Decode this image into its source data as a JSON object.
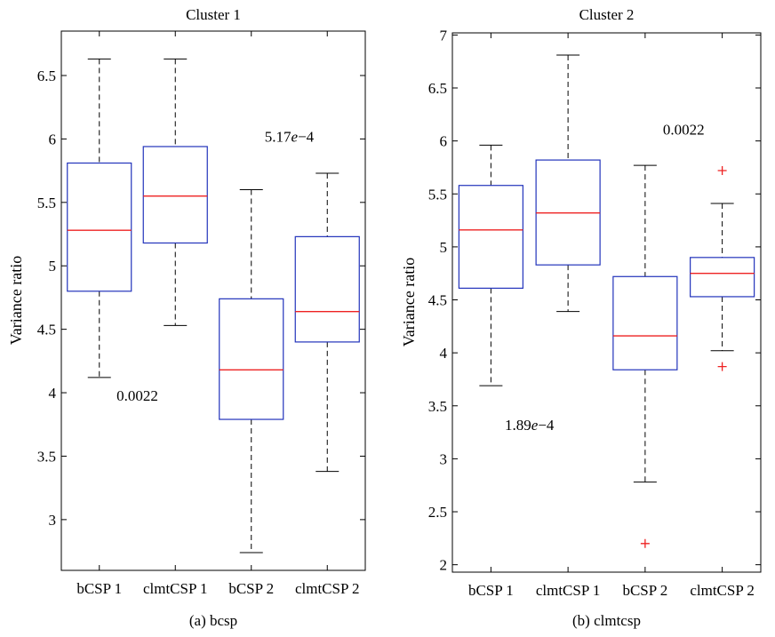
{
  "chart_data": [
    {
      "type": "box",
      "title": "Cluster 1",
      "caption": "(a)  bcsp",
      "ylabel": "Variance ratio",
      "ylim": [
        2.6,
        6.85
      ],
      "yticks": [
        3,
        3.5,
        4,
        4.5,
        5,
        5.5,
        6,
        6.5
      ],
      "ytick_labels": [
        "3",
        "3.5",
        "4",
        "4.5",
        "5",
        "5.5",
        "6",
        "6.5"
      ],
      "categories": [
        "bCSP 1",
        "clmtCSP 1",
        "bCSP 2",
        "clmtCSP 2"
      ],
      "boxes": [
        {
          "whisker_low": 4.12,
          "q1": 4.8,
          "median": 5.28,
          "q3": 5.81,
          "whisker_high": 6.63,
          "outliers": []
        },
        {
          "whisker_low": 4.53,
          "q1": 5.18,
          "median": 5.55,
          "q3": 5.94,
          "whisker_high": 6.63,
          "outliers": []
        },
        {
          "whisker_low": 2.74,
          "q1": 3.79,
          "median": 4.18,
          "q3": 4.74,
          "whisker_high": 5.6,
          "outliers": []
        },
        {
          "whisker_low": 3.38,
          "q1": 4.4,
          "median": 4.64,
          "q3": 5.23,
          "whisker_high": 5.73,
          "outliers": []
        }
      ],
      "annotations": [
        {
          "text": "0.0022",
          "x": 1.5,
          "y": 3.98
        },
        {
          "text": "5.17e−4",
          "x": 3.5,
          "y": 6.02
        }
      ]
    },
    {
      "type": "box",
      "title": "Cluster 2",
      "caption": "(b)  clmtcsp",
      "ylabel": "Variance ratio",
      "ylim": [
        1.93,
        7.02
      ],
      "yticks": [
        2,
        2.5,
        3,
        3.5,
        4,
        4.5,
        5,
        5.5,
        6,
        6.5,
        7
      ],
      "ytick_labels": [
        "2",
        "2.5",
        "3",
        "3.5",
        "4",
        "4.5",
        "5",
        "5.5",
        "6",
        "6.5",
        "7"
      ],
      "categories": [
        "bCSP 1",
        "clmtCSP 1",
        "bCSP 2",
        "clmtCSP 2"
      ],
      "boxes": [
        {
          "whisker_low": 3.69,
          "q1": 4.61,
          "median": 5.16,
          "q3": 5.58,
          "whisker_high": 5.96,
          "outliers": []
        },
        {
          "whisker_low": 4.39,
          "q1": 4.83,
          "median": 5.32,
          "q3": 5.82,
          "whisker_high": 6.81,
          "outliers": []
        },
        {
          "whisker_low": 2.78,
          "q1": 3.84,
          "median": 4.16,
          "q3": 4.72,
          "whisker_high": 5.77,
          "outliers": [
            2.2
          ]
        },
        {
          "whisker_low": 4.02,
          "q1": 4.53,
          "median": 4.75,
          "q3": 4.9,
          "whisker_high": 5.41,
          "outliers": [
            5.72,
            3.87
          ]
        }
      ],
      "annotations": [
        {
          "text": "0.0022",
          "x": 3.5,
          "y": 6.11
        },
        {
          "text": "1.89e−4",
          "x": 1.5,
          "y": 3.32
        }
      ]
    }
  ],
  "colors": {
    "box": "#2233bb",
    "median": "#ee2222",
    "whisker": "#000000",
    "outlier": "#ee2222",
    "axis": "#000000"
  }
}
